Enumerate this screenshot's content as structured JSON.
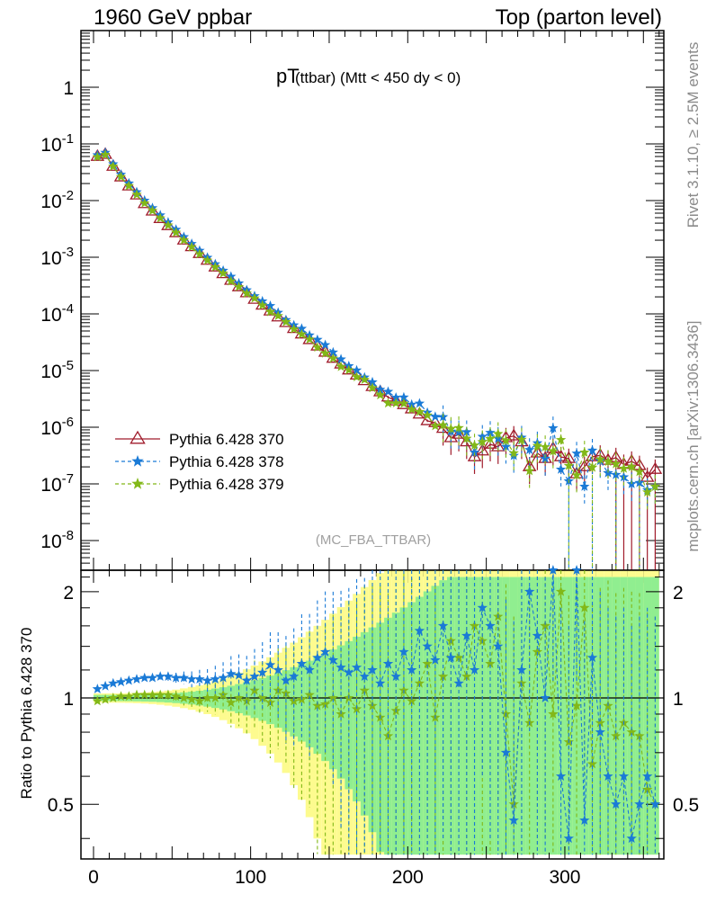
{
  "header": {
    "left": "1960 GeV ppbar",
    "right": "Top (parton level)"
  },
  "side_labels": {
    "top": "Rivet 3.1.10, ≥ 2.5M events",
    "bottom": "mcplots.cern.ch [arXiv:1306.3436]"
  },
  "plot": {
    "title_main": "pT",
    "title_sub": "(ttbar) (Mtt < 450 dy < 0)",
    "watermark": "(MC_FBA_TTBAR)",
    "ratio_ylabel": "Ratio to Pythia 6.428 370"
  },
  "colors": {
    "s370": "#a01c2c",
    "s378": "#1a7ad6",
    "s379": "#82b818",
    "band_yellow": "#fdfb8f",
    "band_green": "#90ee90"
  },
  "chart_data": {
    "type": "scatter",
    "title": "pT (ttbar) (Mtt < 450 dy < 0)",
    "xlabel": "",
    "ylabel": "",
    "ratio_ylabel": "Ratio to Pythia 6.428 370",
    "xlim": [
      -8,
      363
    ],
    "ylim": [
      3e-09,
      10
    ],
    "yscale": "log",
    "ratio_ylim": [
      0.35,
      2.3
    ],
    "x_ticks": [
      "0",
      "100",
      "200",
      "300"
    ],
    "y_ticks_main": [
      "10^-8",
      "10^-7",
      "10^-6",
      "10^-5",
      "10^-4",
      "10^-3",
      "10^-2",
      "10^-1",
      "1"
    ],
    "y_ticks_ratio": [
      "0.5",
      "1",
      "2"
    ],
    "legend_position": "bottom-left",
    "series": [
      {
        "name": "Pythia 6.428 370",
        "marker": "open-triangle",
        "line": "solid",
        "x": [
          2.5,
          7.5,
          12.5,
          17.5,
          22.5,
          27.5,
          32.5,
          37.5,
          42.5,
          47.5,
          52.5,
          57.5,
          62.5,
          67.5,
          72.5,
          77.5,
          82.5,
          87.5,
          92.5,
          97.5,
          102.5,
          107.5,
          112.5,
          117.5,
          122.5,
          127.5,
          132.5,
          137.5,
          142.5,
          147.5,
          152.5,
          157.5,
          162.5,
          167.5,
          172.5,
          177.5,
          182.5,
          187.5,
          192.5,
          197.5,
          202.5,
          207.5,
          212.5,
          217.5,
          222.5,
          227.5,
          232.5,
          237.5,
          242.5,
          247.5,
          252.5,
          257.5,
          262.5,
          267.5,
          272.5,
          277.5,
          282.5,
          287.5,
          292.5,
          297.5,
          302.5,
          307.5,
          312.5,
          317.5,
          322.5,
          327.5,
          332.5,
          337.5,
          342.5,
          347.5,
          352.5,
          357.5
        ],
        "y": [
          0.06,
          0.065,
          0.04,
          0.026,
          0.018,
          0.0125,
          0.0088,
          0.0065,
          0.0048,
          0.0036,
          0.0027,
          0.002,
          0.00153,
          0.00116,
          0.00088,
          0.00067,
          0.00051,
          0.00039,
          0.0003,
          0.000235,
          0.00018,
          0.000142,
          0.000112,
          8.8e-05,
          7e-05,
          5.5e-05,
          4.4e-05,
          3.5e-05,
          2.7e-05,
          2.1e-05,
          1.64e-05,
          1.3e-05,
          1.02e-05,
          8.3e-06,
          6.6e-06,
          5.2e-06,
          4.2e-06,
          3.4e-06,
          2.9e-06,
          2.5e-06,
          2.1e-06,
          1.7e-06,
          1.3e-06,
          1.2e-06,
          9.5e-07,
          6.5e-07,
          7.5e-07,
          5.5e-07,
          3e-07,
          3.8e-07,
          5e-07,
          4.5e-07,
          6.5e-07,
          7e-07,
          5.5e-07,
          2e-07,
          3.5e-07,
          2.8e-07,
          4.2e-07,
          3e-07,
          2.8e-07,
          1.5e-07,
          2e-07,
          3e-07,
          3.2e-07,
          2.6e-07,
          2.9e-07,
          2.2e-07,
          2.5e-07,
          2.1e-07,
          1.3e-07,
          1.8e-07
        ]
      },
      {
        "name": "Pythia 6.428 378",
        "marker": "star",
        "line": "dashed",
        "x": [
          2.5,
          7.5,
          12.5,
          17.5,
          22.5,
          27.5,
          32.5,
          37.5,
          42.5,
          47.5,
          52.5,
          57.5,
          62.5,
          67.5,
          72.5,
          77.5,
          82.5,
          87.5,
          92.5,
          97.5,
          102.5,
          107.5,
          112.5,
          117.5,
          122.5,
          127.5,
          132.5,
          137.5,
          142.5,
          147.5,
          152.5,
          157.5,
          162.5,
          167.5,
          172.5,
          177.5,
          182.5,
          187.5,
          192.5,
          197.5,
          202.5,
          207.5,
          212.5,
          217.5,
          222.5,
          227.5,
          232.5,
          237.5,
          242.5,
          247.5,
          252.5,
          257.5,
          262.5,
          267.5,
          272.5,
          277.5,
          282.5,
          287.5,
          292.5,
          297.5,
          302.5,
          307.5,
          312.5,
          317.5,
          322.5,
          327.5,
          332.5,
          337.5,
          342.5,
          347.5,
          352.5,
          357.5
        ],
        "ratio": [
          1.06,
          1.08,
          1.1,
          1.11,
          1.12,
          1.13,
          1.14,
          1.14,
          1.15,
          1.15,
          1.14,
          1.14,
          1.13,
          1.13,
          1.12,
          1.13,
          1.14,
          1.17,
          1.16,
          1.12,
          1.15,
          1.18,
          1.24,
          1.2,
          1.12,
          1.15,
          1.25,
          1.2,
          1.3,
          1.35,
          1.28,
          1.22,
          1.18,
          1.22,
          1.15,
          1.2,
          1.1,
          1.25,
          1.15,
          1.35,
          1.2,
          1.55,
          1.4,
          1.28,
          1.6,
          1.3,
          1.1,
          1.5,
          1.2,
          1.8,
          1.6,
          1.4,
          0.7,
          0.45,
          1.2,
          2.0,
          1.5,
          1.0,
          2.3,
          0.6,
          0.4,
          2.3,
          0.45,
          1.3,
          0.8,
          0.6,
          0.5,
          0.6,
          0.4,
          0.5,
          0.6,
          0.5
        ]
      },
      {
        "name": "Pythia 6.428 379",
        "marker": "star",
        "line": "dashed",
        "x": [
          2.5,
          7.5,
          12.5,
          17.5,
          22.5,
          27.5,
          32.5,
          37.5,
          42.5,
          47.5,
          52.5,
          57.5,
          62.5,
          67.5,
          72.5,
          77.5,
          82.5,
          87.5,
          92.5,
          97.5,
          102.5,
          107.5,
          112.5,
          117.5,
          122.5,
          127.5,
          132.5,
          137.5,
          142.5,
          147.5,
          152.5,
          157.5,
          162.5,
          167.5,
          172.5,
          177.5,
          182.5,
          187.5,
          192.5,
          197.5,
          202.5,
          207.5,
          212.5,
          217.5,
          222.5,
          227.5,
          232.5,
          237.5,
          242.5,
          247.5,
          252.5,
          257.5,
          262.5,
          267.5,
          272.5,
          277.5,
          282.5,
          287.5,
          292.5,
          297.5,
          302.5,
          307.5,
          312.5,
          317.5,
          322.5,
          327.5,
          332.5,
          337.5,
          342.5,
          347.5,
          352.5,
          357.5
        ],
        "ratio": [
          0.98,
          0.99,
          1.0,
          1.01,
          1.01,
          1.02,
          1.02,
          1.02,
          1.02,
          1.02,
          1.01,
          1.0,
          0.99,
          0.98,
          1.0,
          1.0,
          1.02,
          0.97,
          1.0,
          0.98,
          1.05,
          1.0,
          0.97,
          1.05,
          1.03,
          0.98,
          0.99,
          1.02,
          0.95,
          0.96,
          1.0,
          0.9,
          1.0,
          0.93,
          1.05,
          0.95,
          0.88,
          0.78,
          0.92,
          1.05,
          0.98,
          1.1,
          1.25,
          0.88,
          1.15,
          1.45,
          1.3,
          1.15,
          1.6,
          1.45,
          1.25,
          1.7,
          0.9,
          0.5,
          1.1,
          0.85,
          1.35,
          1.6,
          0.9,
          2.0,
          0.75,
          0.95,
          1.8,
          0.65,
          0.85,
          0.95,
          0.78,
          0.85,
          0.8,
          0.78,
          0.55,
          0.5
        ]
      }
    ]
  }
}
